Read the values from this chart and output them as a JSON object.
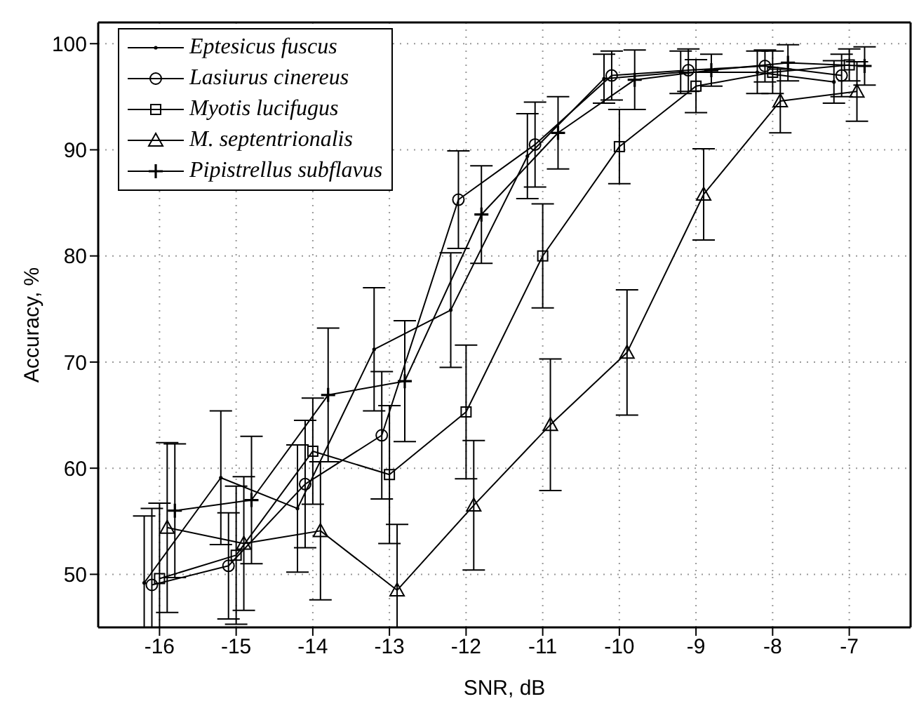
{
  "chart_data": {
    "type": "line",
    "xlabel": "SNR, dB",
    "ylabel": "Accuracy, %",
    "xlim": [
      -16.8,
      -6.2
    ],
    "ylim": [
      45,
      102
    ],
    "xticks": [
      -16,
      -15,
      -14,
      -13,
      -12,
      -11,
      -10,
      -9,
      -8,
      -7
    ],
    "yticks": [
      50,
      60,
      70,
      80,
      90,
      100
    ],
    "grid": true,
    "legend": "top left",
    "line_style": "solid",
    "series": [
      {
        "name": "Eptesicus fuscus",
        "color": "#000000",
        "marker": "none",
        "x": [
          -16.2,
          -15.2,
          -14.2,
          -13.2,
          -12.2,
          -11.2,
          -10.2,
          -9.2,
          -8.2,
          -7.2
        ],
        "values": [
          49.2,
          59.1,
          56.2,
          71.2,
          74.9,
          89.4,
          96.7,
          97.3,
          97.3,
          96.4
        ],
        "errors": [
          [
            45,
            55.5
          ],
          6.3,
          6,
          5.8,
          5.4,
          4,
          2.3,
          2,
          2,
          2
        ]
      },
      {
        "name": "Lasiurus cinereus",
        "color": "#000000",
        "marker": "circle",
        "x": [
          -16.1,
          -15.1,
          -14.1,
          -13.1,
          -12.1,
          -11.1,
          -10.1,
          -9.1,
          -8.1,
          -7.1
        ],
        "values": [
          49.0,
          50.8,
          58.5,
          63.1,
          85.3,
          90.5,
          97.0,
          97.5,
          97.9,
          97.0
        ],
        "errors": [
          [
            45,
            56.2
          ],
          5,
          6,
          6,
          4.6,
          4,
          2.3,
          2,
          1.5,
          2
        ]
      },
      {
        "name": "Myotis lucifugus",
        "color": "#000000",
        "marker": "square",
        "x": [
          -16,
          -15,
          -14,
          -13,
          -12,
          -11,
          -10,
          -9,
          -8,
          -7
        ],
        "values": [
          49.6,
          51.8,
          61.6,
          59.4,
          65.3,
          80.0,
          90.3,
          96.0,
          97.3,
          98.0
        ],
        "errors": [
          [
            45,
            56.7
          ],
          6.5,
          5,
          6.5,
          6.3,
          4.9,
          3.5,
          2.5,
          2,
          1.5
        ]
      },
      {
        "name": "M. septentrionalis",
        "color": "#000000",
        "marker": "triangle",
        "x": [
          -15.9,
          -14.9,
          -13.9,
          -12.9,
          -11.9,
          -10.9,
          -9.9,
          -8.9,
          -7.9,
          -6.9
        ],
        "values": [
          54.4,
          52.9,
          54.1,
          48.5,
          56.5,
          64.1,
          70.9,
          85.8,
          94.6,
          95.5
        ],
        "errors": [
          8,
          6.3,
          6.5,
          [
            45,
            54.7
          ],
          6.1,
          6.2,
          5.9,
          4.3,
          3,
          2.8
        ]
      },
      {
        "name": "Pipistrellus subflavus",
        "color": "#000000",
        "marker": "cross",
        "x": [
          -15.8,
          -14.8,
          -13.8,
          -12.8,
          -11.8,
          -10.8,
          -9.8,
          -8.8,
          -7.8,
          -6.8
        ],
        "values": [
          56.0,
          57.0,
          66.9,
          68.2,
          83.9,
          91.6,
          96.6,
          97.5,
          98.2,
          97.9
        ],
        "errors": [
          6.3,
          6,
          6.3,
          5.7,
          4.6,
          3.4,
          2.8,
          1.5,
          1.7,
          1.8
        ]
      }
    ]
  }
}
